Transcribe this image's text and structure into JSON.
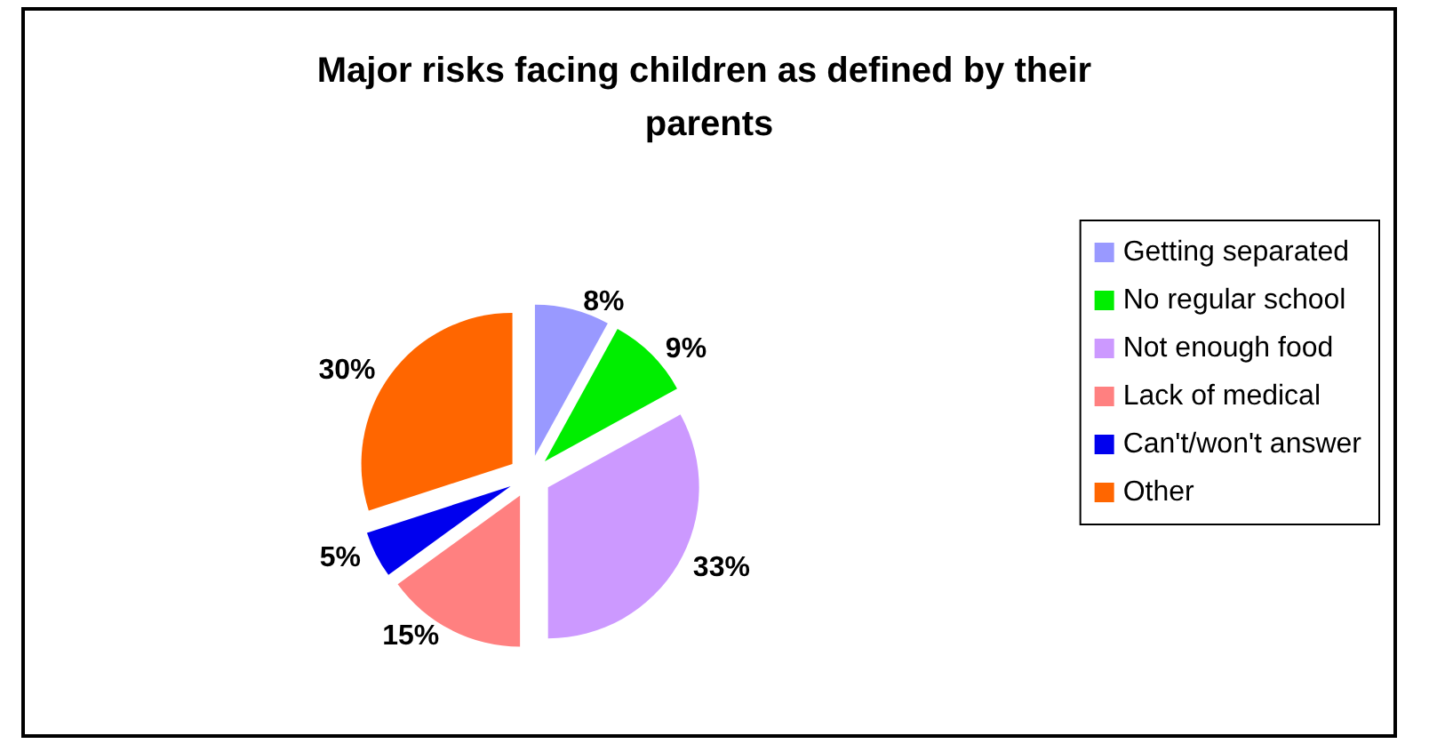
{
  "chart_data": {
    "type": "pie",
    "title": "Major risks facing children as defined by their parents",
    "categories": [
      "Getting separated",
      "No regular school",
      "Not enough food",
      "Lack of medical",
      "Can't/won't answer",
      "Other"
    ],
    "values": [
      8,
      9,
      33,
      15,
      5,
      30
    ],
    "colors": [
      "#9999ff",
      "#00ee00",
      "#cc99ff",
      "#ff8080",
      "#0000ee",
      "#ff6600"
    ],
    "value_labels": [
      "8%",
      "9%",
      "33%",
      "15%",
      "5%",
      "30%"
    ],
    "legend": "right"
  }
}
